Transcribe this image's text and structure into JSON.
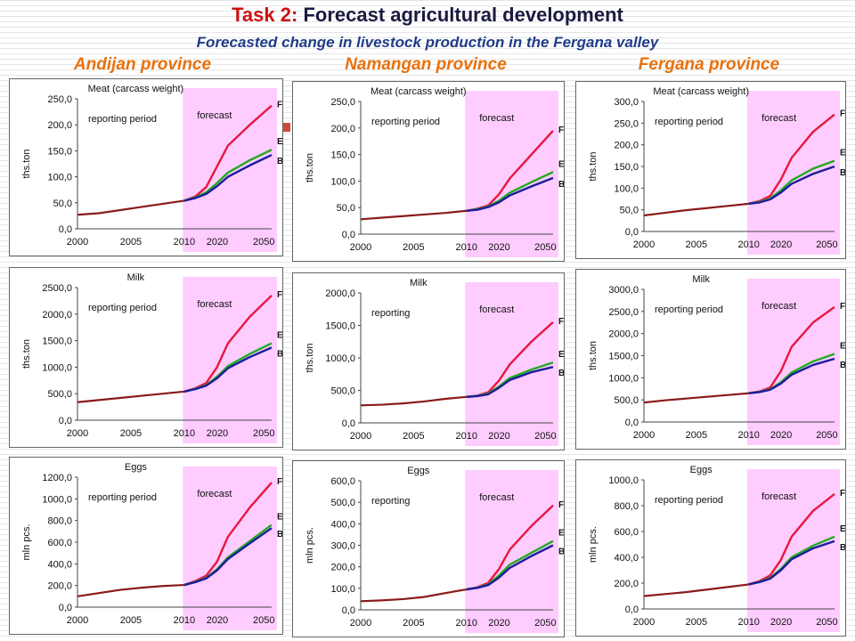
{
  "header": {
    "task_label": "Task 2:",
    "title": "Forecast agricultural development",
    "subtitle": "Forecasted change in livestock production in the Fergana valley"
  },
  "provinces": [
    "Andijan province",
    "Namangan province",
    "Fergana province"
  ],
  "colors": {
    "FSD": "#e8173f",
    "ESA": "#22aa22",
    "BAU": "#1c1c9e",
    "history": "#8b1a1a",
    "forecast_band": "#ffccff"
  },
  "chart_data": [
    {
      "type": "line",
      "province": "Andijan province",
      "title": "Meat (carcass weight)",
      "ylabel": "ths.ton",
      "ylim": [
        0,
        250
      ],
      "yticks": [
        "0,0",
        "50,0",
        "100,0",
        "150,0",
        "200,0",
        "250,0"
      ],
      "x_ticks": [
        "2000",
        "2005",
        "2010",
        "2020",
        "2050"
      ],
      "forecast_start": 2011,
      "forecast_end": 2050,
      "region_labels": [
        "reporting period",
        "forecast"
      ],
      "history": {
        "x": [
          2000,
          2002,
          2004,
          2006,
          2008,
          2010
        ],
        "y": [
          27,
          30,
          36,
          42,
          48,
          54
        ]
      },
      "forecast_x": [
        2010,
        2015,
        2020,
        2025,
        2030,
        2040,
        2050
      ],
      "series": [
        {
          "name": "FSD",
          "values": [
            54,
            62,
            80,
            120,
            160,
            200,
            237
          ]
        },
        {
          "name": "ESA",
          "values": [
            54,
            60,
            70,
            88,
            108,
            132,
            152
          ]
        },
        {
          "name": "BAU",
          "values": [
            54,
            59,
            67,
            82,
            100,
            122,
            142
          ]
        }
      ]
    },
    {
      "type": "line",
      "province": "Namangan province",
      "title": "Meat (carcass weight)",
      "ylabel": "ths.ton",
      "ylim": [
        0,
        250
      ],
      "yticks": [
        "0,0",
        "50,0",
        "100,0",
        "150,0",
        "200,0",
        "250,0"
      ],
      "x_ticks": [
        "2000",
        "2005",
        "2010",
        "2020",
        "2050"
      ],
      "forecast_start": 2011,
      "forecast_end": 2050,
      "region_labels": [
        "reporting period",
        "forecast"
      ],
      "history": {
        "x": [
          2000,
          2002,
          2004,
          2006,
          2008,
          2010
        ],
        "y": [
          28,
          31,
          34,
          37,
          40,
          44
        ]
      },
      "forecast_x": [
        2010,
        2015,
        2020,
        2025,
        2030,
        2040,
        2050
      ],
      "series": [
        {
          "name": "FSD",
          "values": [
            44,
            48,
            54,
            75,
            105,
            150,
            195
          ]
        },
        {
          "name": "ESA",
          "values": [
            44,
            47,
            52,
            63,
            78,
            98,
            117
          ]
        },
        {
          "name": "BAU",
          "values": [
            44,
            46,
            51,
            60,
            73,
            90,
            106
          ]
        }
      ]
    },
    {
      "type": "line",
      "province": "Fergana province",
      "title": "Meat (carcass weight)",
      "ylabel": "ths.ton",
      "ylim": [
        0,
        300
      ],
      "yticks": [
        "0,0",
        "50,0",
        "100,0",
        "150,0",
        "200,0",
        "250,0",
        "300,0"
      ],
      "x_ticks": [
        "2000",
        "2005",
        "2010",
        "2020",
        "2050"
      ],
      "forecast_start": 2011,
      "forecast_end": 2050,
      "region_labels": [
        "reporting period",
        "forecast"
      ],
      "history": {
        "x": [
          2000,
          2002,
          2004,
          2006,
          2008,
          2010
        ],
        "y": [
          37,
          43,
          49,
          54,
          59,
          64
        ]
      },
      "forecast_x": [
        2010,
        2015,
        2020,
        2025,
        2030,
        2040,
        2050
      ],
      "series": [
        {
          "name": "FSD",
          "values": [
            64,
            70,
            82,
            120,
            170,
            230,
            270
          ]
        },
        {
          "name": "ESA",
          "values": [
            64,
            68,
            76,
            95,
            118,
            145,
            163
          ]
        },
        {
          "name": "BAU",
          "values": [
            64,
            67,
            74,
            90,
            110,
            133,
            150
          ]
        }
      ]
    },
    {
      "type": "line",
      "province": "Andijan province",
      "title": "Milk",
      "ylabel": "ths.ton",
      "ylim": [
        0,
        2500
      ],
      "yticks": [
        "0,0",
        "500,0",
        "1000,0",
        "1500,0",
        "2000,0",
        "2500,0"
      ],
      "x_ticks": [
        "2000",
        "2005",
        "2010",
        "2020",
        "2050"
      ],
      "forecast_start": 2011,
      "forecast_end": 2050,
      "region_labels": [
        "reporting period",
        "forecast"
      ],
      "history": {
        "x": [
          2000,
          2002,
          2004,
          2006,
          2008,
          2010
        ],
        "y": [
          340,
          380,
          420,
          460,
          500,
          540
        ]
      },
      "forecast_x": [
        2010,
        2015,
        2020,
        2025,
        2030,
        2040,
        2050
      ],
      "series": [
        {
          "name": "FSD",
          "values": [
            540,
            600,
            700,
            1000,
            1450,
            1950,
            2350
          ]
        },
        {
          "name": "ESA",
          "values": [
            540,
            590,
            660,
            820,
            1020,
            1250,
            1450
          ]
        },
        {
          "name": "BAU",
          "values": [
            540,
            585,
            650,
            790,
            980,
            1190,
            1370
          ]
        }
      ]
    },
    {
      "type": "line",
      "province": "Namangan province",
      "title": "Milk",
      "ylabel": "ths.ton",
      "ylim": [
        0,
        2000
      ],
      "yticks": [
        "0,0",
        "500,0",
        "1000,0",
        "1500,0",
        "2000,0"
      ],
      "x_ticks": [
        "2000",
        "2005",
        "2010",
        "2020",
        "2050"
      ],
      "forecast_start": 2011,
      "forecast_end": 2050,
      "region_labels": [
        "reporting",
        "forecast"
      ],
      "history": {
        "x": [
          2000,
          2002,
          2004,
          2006,
          2008,
          2010
        ],
        "y": [
          270,
          280,
          300,
          330,
          370,
          400
        ]
      },
      "forecast_x": [
        2010,
        2015,
        2020,
        2025,
        2030,
        2040,
        2050
      ],
      "series": [
        {
          "name": "FSD",
          "values": [
            400,
            420,
            470,
            650,
            900,
            1250,
            1550
          ]
        },
        {
          "name": "ESA",
          "values": [
            400,
            415,
            450,
            560,
            690,
            820,
            930
          ]
        },
        {
          "name": "BAU",
          "values": [
            400,
            412,
            440,
            540,
            660,
            780,
            860
          ]
        }
      ]
    },
    {
      "type": "line",
      "province": "Fergana province",
      "title": "Milk",
      "ylabel": "ths.ton",
      "ylim": [
        0,
        3000
      ],
      "yticks": [
        "0,0",
        "500,0",
        "1000,0",
        "1500,0",
        "2000,0",
        "2500,0",
        "3000,0"
      ],
      "x_ticks": [
        "2000",
        "2005",
        "2010",
        "2020",
        "2050"
      ],
      "forecast_start": 2011,
      "forecast_end": 2050,
      "region_labels": [
        "reporting period",
        "forecast"
      ],
      "history": {
        "x": [
          2000,
          2002,
          2004,
          2006,
          2008,
          2010
        ],
        "y": [
          440,
          490,
          530,
          570,
          610,
          650
        ]
      },
      "forecast_x": [
        2010,
        2015,
        2020,
        2025,
        2030,
        2040,
        2050
      ],
      "series": [
        {
          "name": "FSD",
          "values": [
            650,
            690,
            780,
            1150,
            1700,
            2250,
            2600
          ]
        },
        {
          "name": "ESA",
          "values": [
            650,
            680,
            740,
            900,
            1120,
            1370,
            1540
          ]
        },
        {
          "name": "BAU",
          "values": [
            650,
            675,
            730,
            870,
            1070,
            1290,
            1430
          ]
        }
      ]
    },
    {
      "type": "line",
      "province": "Andijan province",
      "title": "Eggs",
      "ylabel": "mln pcs.",
      "ylim": [
        0,
        1200
      ],
      "yticks": [
        "0,0",
        "200,0",
        "400,0",
        "600,0",
        "800,0",
        "1000,0",
        "1200,0"
      ],
      "x_ticks": [
        "2000",
        "2005",
        "2010",
        "2020",
        "2050"
      ],
      "forecast_start": 2011,
      "forecast_end": 2050,
      "region_labels": [
        "reporting period",
        "forecast"
      ],
      "history": {
        "x": [
          2000,
          2002,
          2004,
          2006,
          2008,
          2010
        ],
        "y": [
          100,
          130,
          160,
          180,
          195,
          205
        ]
      },
      "forecast_x": [
        2010,
        2015,
        2020,
        2025,
        2030,
        2040,
        2050
      ],
      "series": [
        {
          "name": "FSD",
          "values": [
            205,
            240,
            290,
            420,
            650,
            920,
            1150
          ]
        },
        {
          "name": "ESA",
          "values": [
            205,
            232,
            270,
            350,
            460,
            610,
            760
          ]
        },
        {
          "name": "BAU",
          "values": [
            205,
            230,
            265,
            340,
            445,
            590,
            730
          ]
        }
      ]
    },
    {
      "type": "line",
      "province": "Namangan province",
      "title": "Eggs",
      "ylabel": "mln pcs.",
      "ylim": [
        0,
        600
      ],
      "yticks": [
        "0,0",
        "100,0",
        "200,0",
        "300,0",
        "400,0",
        "500,0",
        "600,0"
      ],
      "x_ticks": [
        "2000",
        "2005",
        "2010",
        "2020",
        "2050"
      ],
      "forecast_start": 2011,
      "forecast_end": 2050,
      "region_labels": [
        "reporting",
        "forecast"
      ],
      "history": {
        "x": [
          2000,
          2002,
          2004,
          2006,
          2008,
          2010
        ],
        "y": [
          40,
          44,
          50,
          60,
          78,
          95
        ]
      },
      "forecast_x": [
        2010,
        2015,
        2020,
        2025,
        2030,
        2040,
        2050
      ],
      "series": [
        {
          "name": "FSD",
          "values": [
            95,
            105,
            125,
            190,
            280,
            390,
            485
          ]
        },
        {
          "name": "ESA",
          "values": [
            95,
            103,
            118,
            160,
            210,
            265,
            320
          ]
        },
        {
          "name": "BAU",
          "values": [
            95,
            102,
            115,
            150,
            195,
            250,
            300
          ]
        }
      ]
    },
    {
      "type": "line",
      "province": "Fergana province",
      "title": "Eggs",
      "ylabel": "mln pcs.",
      "ylim": [
        0,
        1000
      ],
      "yticks": [
        "0,0",
        "200,0",
        "400,0",
        "600,0",
        "800,0",
        "1000,0"
      ],
      "x_ticks": [
        "2000",
        "2005",
        "2010",
        "2020",
        "2050"
      ],
      "forecast_start": 2011,
      "forecast_end": 2050,
      "region_labels": [
        "reporting period",
        "forecast"
      ],
      "history": {
        "x": [
          2000,
          2002,
          2004,
          2006,
          2008,
          2010
        ],
        "y": [
          100,
          115,
          130,
          150,
          170,
          190
        ]
      },
      "forecast_x": [
        2010,
        2015,
        2020,
        2025,
        2030,
        2040,
        2050
      ],
      "series": [
        {
          "name": "FSD",
          "values": [
            190,
            215,
            260,
            380,
            560,
            760,
            890
          ]
        },
        {
          "name": "ESA",
          "values": [
            190,
            210,
            240,
            310,
            400,
            490,
            560
          ]
        },
        {
          "name": "BAU",
          "values": [
            190,
            208,
            235,
            300,
            385,
            470,
            525
          ]
        }
      ]
    }
  ]
}
